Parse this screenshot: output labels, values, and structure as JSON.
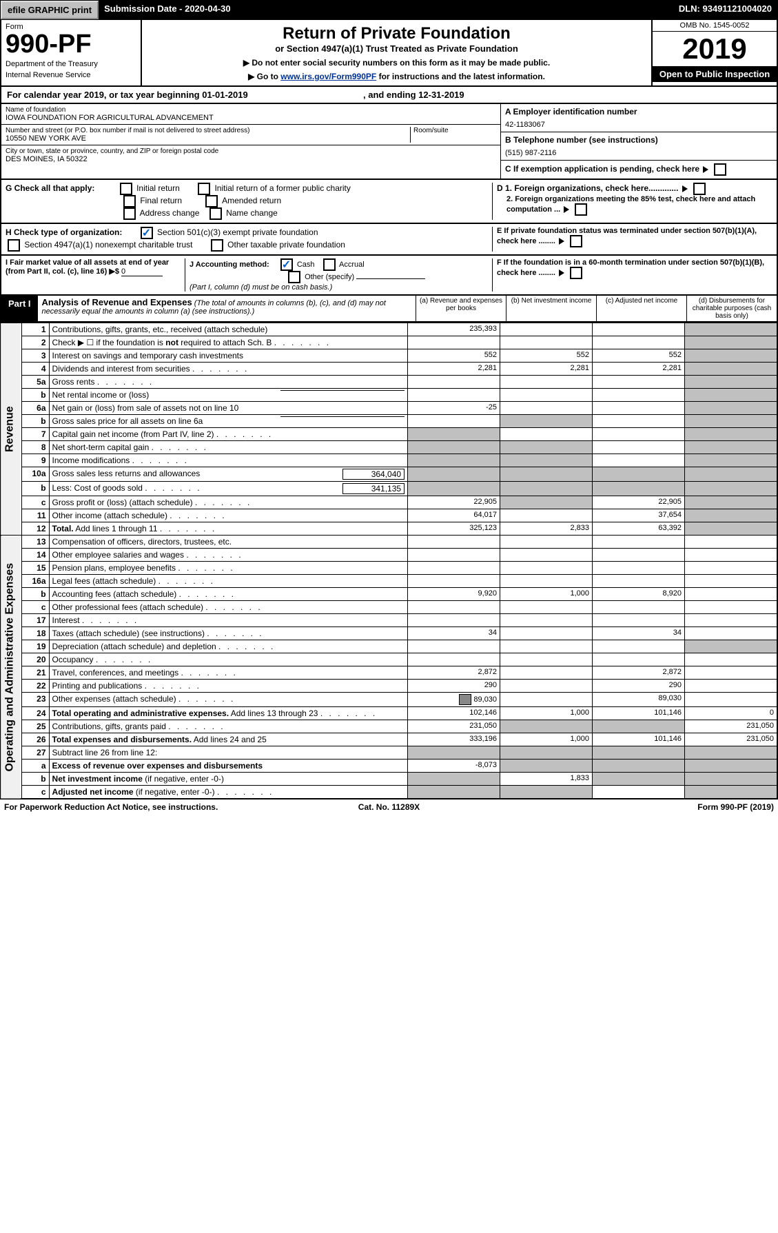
{
  "topbar": {
    "efile": "efile GRAPHIC print",
    "sub": "Submission Date - 2020-04-30",
    "dln": "DLN: 93491121004020"
  },
  "header": {
    "form": "Form",
    "num": "990-PF",
    "dept": "Department of the Treasury",
    "irs": "Internal Revenue Service",
    "title": "Return of Private Foundation",
    "sub": "or Section 4947(a)(1) Trust Treated as Private Foundation",
    "warn": "▶ Do not enter social security numbers on this form as it may be made public.",
    "goto": "▶ Go to ",
    "link": "www.irs.gov/Form990PF",
    "goto2": " for instructions and the latest information.",
    "omb": "OMB No. 1545-0052",
    "year": "2019",
    "open": "Open to Public Inspection"
  },
  "cal": {
    "a": "For calendar year 2019, or tax year beginning 01-01-2019",
    "b": ", and ending 12-31-2019"
  },
  "info": {
    "name_lbl": "Name of foundation",
    "name": "IOWA FOUNDATION FOR AGRICULTURAL ADVANCEMENT",
    "addr_lbl": "Number and street (or P.O. box number if mail is not delivered to street address)",
    "room_lbl": "Room/suite",
    "addr": "10550 NEW YORK AVE",
    "city_lbl": "City or town, state or province, country, and ZIP or foreign postal code",
    "city": "DES MOINES, IA  50322",
    "A": "A Employer identification number",
    "ein": "42-1183067",
    "B": "B Telephone number (see instructions)",
    "tel": "(515) 987-2116",
    "C": "C If exemption application is pending, check here",
    "D1": "D 1. Foreign organizations, check here.............",
    "D2": "2. Foreign organizations meeting the 85% test, check here and attach computation ...",
    "E": "E  If private foundation status was terminated under section 507(b)(1)(A), check here ........",
    "F": "F  If the foundation is in a 60-month termination under section 507(b)(1)(B), check here ........"
  },
  "G": {
    "lbl": "G Check all that apply:",
    "o": [
      "Initial return",
      "Initial return of a former public charity",
      "Final return",
      "Amended return",
      "Address change",
      "Name change"
    ]
  },
  "H": {
    "lbl": "H Check type of organization:",
    "o": [
      "Section 501(c)(3) exempt private foundation",
      "Section 4947(a)(1) nonexempt charitable trust",
      "Other taxable private foundation"
    ]
  },
  "I": {
    "lbl": "I Fair market value of all assets at end of year (from Part II, col. (c), line 16) ▶$",
    "val": "0"
  },
  "J": {
    "lbl": "J Accounting method:",
    "o": [
      "Cash",
      "Accrual",
      "Other (specify)"
    ],
    "note": "(Part I, column (d) must be on cash basis.)"
  },
  "part1": {
    "hdr": "Part I",
    "title": "Analysis of Revenue and Expenses",
    "note": "(The total of amounts in columns (b), (c), and (d) may not necessarily equal the amounts in column (a) (see instructions).)",
    "cols": [
      "(a)   Revenue and expenses per books",
      "(b)  Net investment income",
      "(c)  Adjusted net income",
      "(d)  Disbursements for charitable purposes (cash basis only)"
    ]
  },
  "rows": [
    {
      "n": "1",
      "d": "Contributions, gifts, grants, etc., received (attach schedule)",
      "a": "235,393"
    },
    {
      "n": "2",
      "d": "Check ▶ ☐ if the foundation is <b>not</b> required to attach Sch. B",
      "dots": 1
    },
    {
      "n": "3",
      "d": "Interest on savings and temporary cash investments",
      "a": "552",
      "b": "552",
      "c": "552"
    },
    {
      "n": "4",
      "d": "Dividends and interest from securities",
      "dots": 1,
      "a": "2,281",
      "b": "2,281",
      "c": "2,281"
    },
    {
      "n": "5a",
      "d": "Gross rents",
      "dots": 1
    },
    {
      "n": "b",
      "d": "Net rental income or (loss)",
      "uline": 1
    },
    {
      "n": "6a",
      "d": "Net gain or (loss) from sale of assets not on line 10",
      "a": "-25"
    },
    {
      "n": "b",
      "d": "Gross sales price for all assets on line 6a",
      "uline": 1,
      "greyb": 1
    },
    {
      "n": "7",
      "d": "Capital gain net income (from Part IV, line 2)",
      "dots": 1,
      "greya": 1
    },
    {
      "n": "8",
      "d": "Net short-term capital gain",
      "dots": 1,
      "greya": 1,
      "greyb": 1
    },
    {
      "n": "9",
      "d": "Income modifications",
      "dots": 1,
      "greya": 1,
      "greyb": 1
    },
    {
      "n": "10a",
      "d": "Gross sales less returns and allowances",
      "box": "364,040",
      "greya": 1,
      "greyb": 1,
      "greyc": 1
    },
    {
      "n": "b",
      "d": "Less: Cost of goods sold",
      "dots": 1,
      "box": "341,135",
      "greya": 1,
      "greyb": 1,
      "greyc": 1
    },
    {
      "n": "c",
      "d": "Gross profit or (loss) (attach schedule)",
      "dots": 1,
      "a": "22,905",
      "greyb": 1,
      "c": "22,905"
    },
    {
      "n": "11",
      "d": "Other income (attach schedule)",
      "dots": 1,
      "a": "64,017",
      "c": "37,654"
    },
    {
      "n": "12",
      "d": "<b>Total.</b> Add lines 1 through 11",
      "dots": 1,
      "a": "325,123",
      "b": "2,833",
      "c": "63,392"
    }
  ],
  "oprows": [
    {
      "n": "13",
      "d": "Compensation of officers, directors, trustees, etc."
    },
    {
      "n": "14",
      "d": "Other employee salaries and wages",
      "dots": 1
    },
    {
      "n": "15",
      "d": "Pension plans, employee benefits",
      "dots": 1
    },
    {
      "n": "16a",
      "d": "Legal fees (attach schedule)",
      "dots": 1
    },
    {
      "n": "b",
      "d": "Accounting fees (attach schedule)",
      "dots": 1,
      "a": "9,920",
      "b": "1,000",
      "c": "8,920"
    },
    {
      "n": "c",
      "d": "Other professional fees (attach schedule)",
      "dots": 1
    },
    {
      "n": "17",
      "d": "Interest",
      "dots": 1
    },
    {
      "n": "18",
      "d": "Taxes (attach schedule) (see instructions)",
      "dots": 1,
      "a": "34",
      "c": "34"
    },
    {
      "n": "19",
      "d": "Depreciation (attach schedule) and depletion",
      "dots": 1,
      "greydd": 1
    },
    {
      "n": "20",
      "d": "Occupancy",
      "dots": 1
    },
    {
      "n": "21",
      "d": "Travel, conferences, and meetings",
      "dots": 1,
      "a": "2,872",
      "c": "2,872"
    },
    {
      "n": "22",
      "d": "Printing and publications",
      "dots": 1,
      "a": "290",
      "c": "290"
    },
    {
      "n": "23",
      "d": "Other expenses (attach schedule)",
      "dots": 1,
      "icon": 1,
      "a": "89,030",
      "c": "89,030"
    },
    {
      "n": "24",
      "d": "<b>Total operating and administrative expenses.</b> Add lines 13 through 23",
      "dots": 1,
      "a": "102,146",
      "b": "1,000",
      "c": "101,146",
      "dd": "0"
    },
    {
      "n": "25",
      "d": "Contributions, gifts, grants paid",
      "dots": 1,
      "a": "231,050",
      "greyb": 1,
      "greyc": 1,
      "dd": "231,050"
    },
    {
      "n": "26",
      "d": "<b>Total expenses and disbursements.</b> Add lines 24 and 25",
      "a": "333,196",
      "b": "1,000",
      "c": "101,146",
      "dd": "231,050"
    },
    {
      "n": "27",
      "d": "Subtract line 26 from line 12:",
      "greya": 1,
      "greyb": 1,
      "greyc": 1,
      "greydd": 1
    },
    {
      "n": "a",
      "d": "<b>Excess of revenue over expenses and disbursements</b>",
      "a": "-8,073",
      "greyb": 1,
      "greyc": 1,
      "greydd": 1
    },
    {
      "n": "b",
      "d": "<b>Net investment income</b> (if negative, enter -0-)",
      "greya": 1,
      "b": "1,833",
      "greyc": 1,
      "greydd": 1
    },
    {
      "n": "c",
      "d": "<b>Adjusted net income</b> (if negative, enter -0-)",
      "dots": 1,
      "greya": 1,
      "greyb": 1,
      "greydd": 1
    }
  ],
  "sides": {
    "rev": "Revenue",
    "op": "Operating and Administrative Expenses"
  },
  "footer": {
    "l": "For Paperwork Reduction Act Notice, see instructions.",
    "c": "Cat. No. 11289X",
    "r": "Form 990-PF (2019)"
  }
}
